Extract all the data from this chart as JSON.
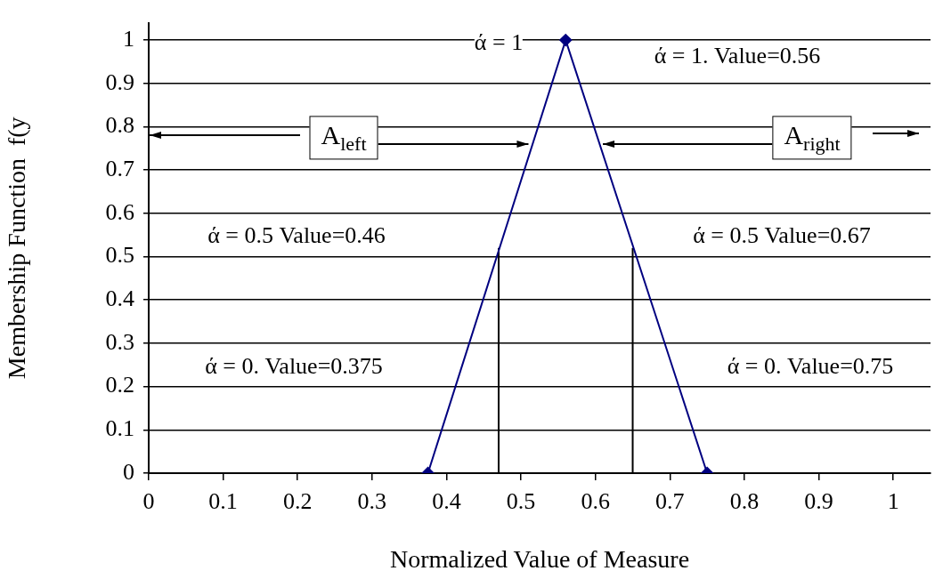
{
  "chart_data": {
    "type": "line",
    "xlabel": "Normalized Value of Measure",
    "ylabel": "Membership Function  f(y",
    "xlim": [
      0,
      1.05
    ],
    "xticks": [
      0,
      0.1,
      0.2,
      0.3,
      0.4,
      0.5,
      0.6,
      0.7,
      0.8,
      0.9,
      1
    ],
    "ylim": [
      0,
      1.04
    ],
    "yticks": [
      0,
      0.1,
      0.2,
      0.3,
      0.4,
      0.5,
      0.6,
      0.7,
      0.8,
      0.9,
      1
    ],
    "grid": "y",
    "legend": false,
    "series": [
      {
        "color": "#000080",
        "marker": "diamond",
        "x": [
          0.375,
          0.56,
          0.75
        ],
        "values": [
          0,
          1,
          0
        ]
      },
      {
        "color": "#000000",
        "marker": "none",
        "x": [
          0.47,
          0.47
        ],
        "values": [
          0,
          0.52
        ]
      },
      {
        "color": "#000000",
        "marker": "none",
        "x": [
          0.65,
          0.65
        ],
        "values": [
          0,
          0.52
        ]
      }
    ],
    "annotations": [
      "ά = 1",
      "ά = 1. Value=0.56",
      "ά = 0.5 Value=0.46",
      "ά = 0.5 Value=0.67",
      "ά = 0. Value=0.375",
      "ά = 0. Value=0.75",
      {
        "text": "A$_{left}$",
        "x": 0.51,
        "y": 0.76
      },
      {
        "text": "A$_{right}$",
        "x": 0.61,
        "y": 0.76
      }
    ]
  }
}
